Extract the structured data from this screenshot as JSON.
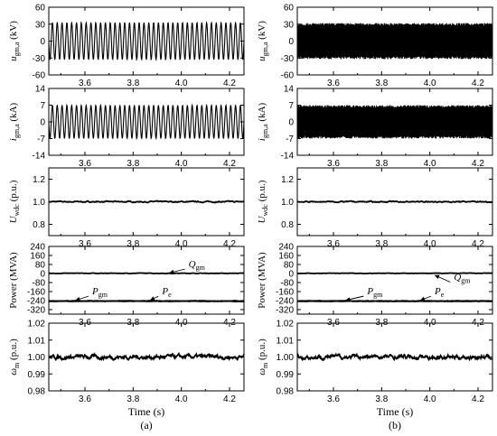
{
  "chart_data": [
    {
      "type": "line",
      "column": "a",
      "panel": 0,
      "ylabel": "u_gm,a (kV)",
      "ylabel_main": "u",
      "ylabel_sub": "gm,a",
      "ylabel_unit": " (kV)",
      "ylim": [
        -60,
        60
      ],
      "yticks": [
        "60",
        "30",
        "0",
        "-30",
        "-60"
      ],
      "yticks_num": [
        60,
        30,
        0,
        -30,
        -60
      ],
      "xlim": [
        3.45,
        4.26
      ],
      "xticks": [
        "3.6",
        "3.8",
        "4.0",
        "4.2"
      ],
      "xticks_num": [
        3.6,
        3.8,
        4.0,
        4.2
      ],
      "series": [
        {
          "kind": "sine",
          "amplitude": 33,
          "frequency_hz": 50,
          "offset": 0
        }
      ]
    },
    {
      "type": "line",
      "column": "a",
      "panel": 1,
      "ylabel": "i_gm,a (kA)",
      "ylabel_main": "i",
      "ylabel_sub": "gm,a",
      "ylabel_unit": " (kA)",
      "ylim": [
        -14,
        14
      ],
      "yticks": [
        "14",
        "7",
        "0",
        "-7",
        "-14"
      ],
      "yticks_num": [
        14,
        7,
        0,
        -7,
        -14
      ],
      "xlim": [
        3.45,
        4.26
      ],
      "xticks": [
        "3.6",
        "3.8",
        "4.0",
        "4.2"
      ],
      "xticks_num": [
        3.6,
        3.8,
        4.0,
        4.2
      ],
      "series": [
        {
          "kind": "sine",
          "amplitude": 7,
          "frequency_hz": 50,
          "offset": 0
        }
      ]
    },
    {
      "type": "line",
      "column": "a",
      "panel": 2,
      "ylabel": "U_wdc (p.u.)",
      "ylabel_main": "U",
      "ylabel_sub": "wdc",
      "ylabel_unit": " (p.u.)",
      "ylim": [
        0.7,
        1.3
      ],
      "yticks": [
        "1.2",
        "1.0",
        "0.8"
      ],
      "yticks_num": [
        1.2,
        1.0,
        0.8
      ],
      "xlim": [
        3.45,
        4.26
      ],
      "xticks": [
        "3.6",
        "3.8",
        "4.0",
        "4.2"
      ],
      "xticks_num": [
        3.6,
        3.8,
        4.0,
        4.2
      ],
      "series": [
        {
          "kind": "noisy",
          "mean": 1.0,
          "ripple": 0.006
        }
      ]
    },
    {
      "type": "line",
      "column": "a",
      "panel": 3,
      "ylabel": "Power (MVA)",
      "ylabel_main": "Power",
      "ylabel_sub": "",
      "ylabel_unit": " (MVA)",
      "ylim": [
        -360,
        240
      ],
      "yticks": [
        "240",
        "160",
        "80",
        "0",
        "-80",
        "-160",
        "-240",
        "-320"
      ],
      "yticks_num": [
        240,
        160,
        80,
        0,
        -80,
        -160,
        -240,
        -320
      ],
      "xlim": [
        3.45,
        4.26
      ],
      "xticks": [
        "3.6",
        "3.8",
        "4.0",
        "4.2"
      ],
      "xticks_num": [
        3.6,
        3.8,
        4.0,
        4.2
      ],
      "series": [
        {
          "name_main": "Q",
          "name_sub": "gm",
          "kind": "noisy",
          "mean": 2,
          "ripple": 2.5
        },
        {
          "name_main": "P",
          "name_sub": "gm",
          "kind": "noisy",
          "mean": -243,
          "ripple": 2.5
        },
        {
          "name_main": "P",
          "name_sub": "e",
          "kind": "noisy",
          "mean": -246,
          "ripple": 2
        }
      ],
      "annotations": [
        {
          "main": "Q",
          "sub": "gm",
          "tx": 4.03,
          "ty": 55,
          "ax": 3.95,
          "ay": 5
        },
        {
          "main": "P",
          "sub": "gm",
          "tx": 3.63,
          "ty": -185,
          "ax": 3.56,
          "ay": -238
        },
        {
          "main": "P",
          "sub": "e",
          "tx": 3.92,
          "ty": -185,
          "ax": 3.87,
          "ay": -238
        }
      ]
    },
    {
      "type": "line",
      "column": "a",
      "panel": 4,
      "ylabel": "ω_m (p.u.)",
      "ylabel_main": "ω",
      "ylabel_sub": "m",
      "ylabel_unit": " (p.u.)",
      "ylim": [
        0.98,
        1.02
      ],
      "yticks": [
        "1.02",
        "1.01",
        "1.00",
        "0.99",
        "0.98"
      ],
      "yticks_num": [
        1.02,
        1.01,
        1.0,
        0.99,
        0.98
      ],
      "xlim": [
        3.45,
        4.26
      ],
      "xticks": [
        "3.6",
        "3.8",
        "4.0",
        "4.2"
      ],
      "xticks_num": [
        3.6,
        3.8,
        4.0,
        4.2
      ],
      "xlabel": "Time (s)",
      "caption": "(a)",
      "series": [
        {
          "kind": "noisy",
          "mean": 1.0,
          "ripple": 0.0015
        }
      ]
    },
    {
      "type": "line",
      "column": "b",
      "panel": 0,
      "ylabel": "u_gm,a (kV)",
      "ylabel_main": "u",
      "ylabel_sub": "gm,a",
      "ylabel_unit": " (kV)",
      "ylim": [
        -60,
        60
      ],
      "yticks": [
        "60",
        "30",
        "0",
        "-30",
        "-60"
      ],
      "yticks_num": [
        60,
        30,
        0,
        -30,
        -60
      ],
      "xlim": [
        3.45,
        4.26
      ],
      "xticks": [
        "3.6",
        "3.8",
        "4.0",
        "4.2"
      ],
      "xticks_num": [
        3.6,
        3.8,
        4.0,
        4.2
      ],
      "series": [
        {
          "kind": "band",
          "amplitude": 32
        }
      ]
    },
    {
      "type": "line",
      "column": "b",
      "panel": 1,
      "ylabel": "i_gm,a (kA)",
      "ylabel_main": "i",
      "ylabel_sub": "gm,a",
      "ylabel_unit": " (kA)",
      "ylim": [
        -14,
        14
      ],
      "yticks": [
        "14",
        "7",
        "0",
        "-7",
        "-14"
      ],
      "yticks_num": [
        14,
        7,
        0,
        -7,
        -14
      ],
      "xlim": [
        3.45,
        4.26
      ],
      "xticks": [
        "3.6",
        "3.8",
        "4.0",
        "4.2"
      ],
      "xticks_num": [
        3.6,
        3.8,
        4.0,
        4.2
      ],
      "series": [
        {
          "kind": "band",
          "amplitude": 7
        }
      ]
    },
    {
      "type": "line",
      "column": "b",
      "panel": 2,
      "ylabel": "U_wdc (p.u.)",
      "ylabel_main": "U",
      "ylabel_sub": "wdc",
      "ylabel_unit": " (p.u.)",
      "ylim": [
        0.7,
        1.3
      ],
      "yticks": [
        "1.2",
        "1.0",
        "0.8"
      ],
      "yticks_num": [
        1.2,
        1.0,
        0.8
      ],
      "xlim": [
        3.45,
        4.26
      ],
      "xticks": [
        "3.6",
        "3.8",
        "4.0",
        "4.2"
      ],
      "xticks_num": [
        3.6,
        3.8,
        4.0,
        4.2
      ],
      "series": [
        {
          "kind": "noisy",
          "mean": 1.0,
          "ripple": 0.006
        }
      ]
    },
    {
      "type": "line",
      "column": "b",
      "panel": 3,
      "ylabel": "Power (MVA)",
      "ylabel_main": "Power",
      "ylabel_sub": "",
      "ylabel_unit": " (MVA)",
      "ylim": [
        -360,
        240
      ],
      "yticks": [
        "240",
        "160",
        "80",
        "0",
        "-80",
        "-160",
        "-240",
        "-320"
      ],
      "yticks_num": [
        240,
        160,
        80,
        0,
        -80,
        -160,
        -240,
        -320
      ],
      "xlim": [
        3.45,
        4.26
      ],
      "xticks": [
        "3.6",
        "3.8",
        "4.0",
        "4.2"
      ],
      "xticks_num": [
        3.6,
        3.8,
        4.0,
        4.2
      ],
      "series": [
        {
          "name_main": "Q",
          "name_sub": "gm",
          "kind": "noisy",
          "mean": 2,
          "ripple": 2.5
        },
        {
          "name_main": "P",
          "name_sub": "gm",
          "kind": "noisy",
          "mean": -243,
          "ripple": 2.5
        },
        {
          "name_main": "P",
          "name_sub": "e",
          "kind": "noisy",
          "mean": -246,
          "ripple": 2
        }
      ],
      "annotations": [
        {
          "main": "Q",
          "sub": "gm",
          "tx": 4.1,
          "ty": -60,
          "ax": 4.02,
          "ay": -15
        },
        {
          "main": "P",
          "sub": "gm",
          "tx": 3.74,
          "ty": -185,
          "ax": 3.65,
          "ay": -238
        },
        {
          "main": "P",
          "sub": "e",
          "tx": 4.02,
          "ty": -185,
          "ax": 3.96,
          "ay": -238
        }
      ]
    },
    {
      "type": "line",
      "column": "b",
      "panel": 4,
      "ylabel": "ω_m (p.u.)",
      "ylabel_main": "ω",
      "ylabel_sub": "m",
      "ylabel_unit": " (p.u.)",
      "ylim": [
        0.98,
        1.02
      ],
      "yticks": [
        "1.02",
        "1.01",
        "1.00",
        "0.99",
        "0.98"
      ],
      "yticks_num": [
        1.02,
        1.01,
        1.0,
        0.99,
        0.98
      ],
      "xlim": [
        3.45,
        4.26
      ],
      "xticks": [
        "3.6",
        "3.8",
        "4.0",
        "4.2"
      ],
      "xticks_num": [
        3.6,
        3.8,
        4.0,
        4.2
      ],
      "xlabel": "Time (s)",
      "caption": "(b)",
      "series": [
        {
          "kind": "noisy",
          "mean": 1.0,
          "ripple": 0.0015
        }
      ]
    }
  ]
}
